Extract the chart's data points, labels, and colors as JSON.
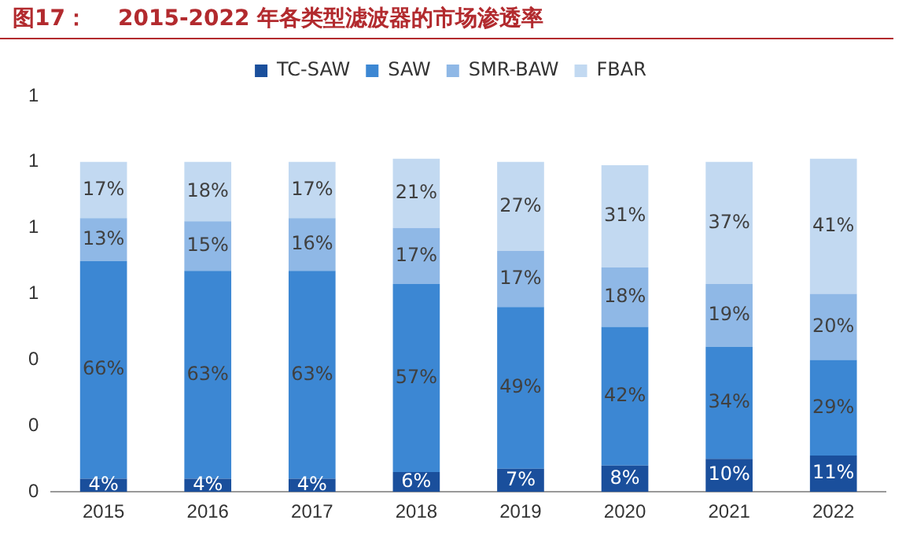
{
  "chart_data": {
    "type": "bar",
    "title": "图17：    2015-2022 年各类型滤波器的市场渗透率",
    "stacked": true,
    "legend": "top",
    "grid": false,
    "data_labels": false,
    "categories": [
      "2015",
      "2016",
      "2017",
      "2018",
      "2019",
      "2020",
      "2021",
      "2022"
    ],
    "ylim": [
      0,
      1.2
    ],
    "yticks": [
      0,
      {
        "value": 0.2,
        "label": "0"
      },
      {
        "value": 0.4,
        "label": "0"
      },
      {
        "value": 0.6,
        "label": "1"
      },
      {
        "value": 0.8,
        "label": "1"
      },
      {
        "value": 1.0,
        "label": "1"
      },
      {
        "value": 1.2,
        "label": "1"
      }
    ],
    "series": [
      {
        "name": "TC-SAW",
        "color": "#1a4f9c",
        "values": [
          0.04,
          0.04,
          0.04,
          0.06,
          0.07,
          0.08,
          0.1,
          0.11
        ],
        "value_labels": [
          "4%",
          "4%",
          "4%",
          "6%",
          "7%",
          "8%",
          "10%",
          "11%"
        ]
      },
      {
        "name": "SAW",
        "color": "#3c87d3",
        "values": [
          0.66,
          0.63,
          0.63,
          0.57,
          0.49,
          0.42,
          0.34,
          0.29
        ],
        "value_labels": [
          "66%",
          "63%",
          "63%",
          "57%",
          "49%",
          "42%",
          "34%",
          "29%"
        ]
      },
      {
        "name": "SMR-BAW",
        "color": "#8fb8e6",
        "values": [
          0.13,
          0.15,
          0.16,
          0.17,
          0.17,
          0.18,
          0.19,
          0.2
        ],
        "value_labels": [
          "13%",
          "15%",
          "16%",
          "17%",
          "17%",
          "18%",
          "19%",
          "20%"
        ]
      },
      {
        "name": "FBAR",
        "color": "#c2d9f1",
        "values": [
          0.17,
          0.18,
          0.17,
          0.21,
          0.27,
          0.31,
          0.37,
          0.41
        ],
        "value_labels": [
          "17%",
          "18%",
          "17%",
          "21%",
          "27%",
          "31%",
          "37%",
          "41%"
        ]
      }
    ]
  }
}
